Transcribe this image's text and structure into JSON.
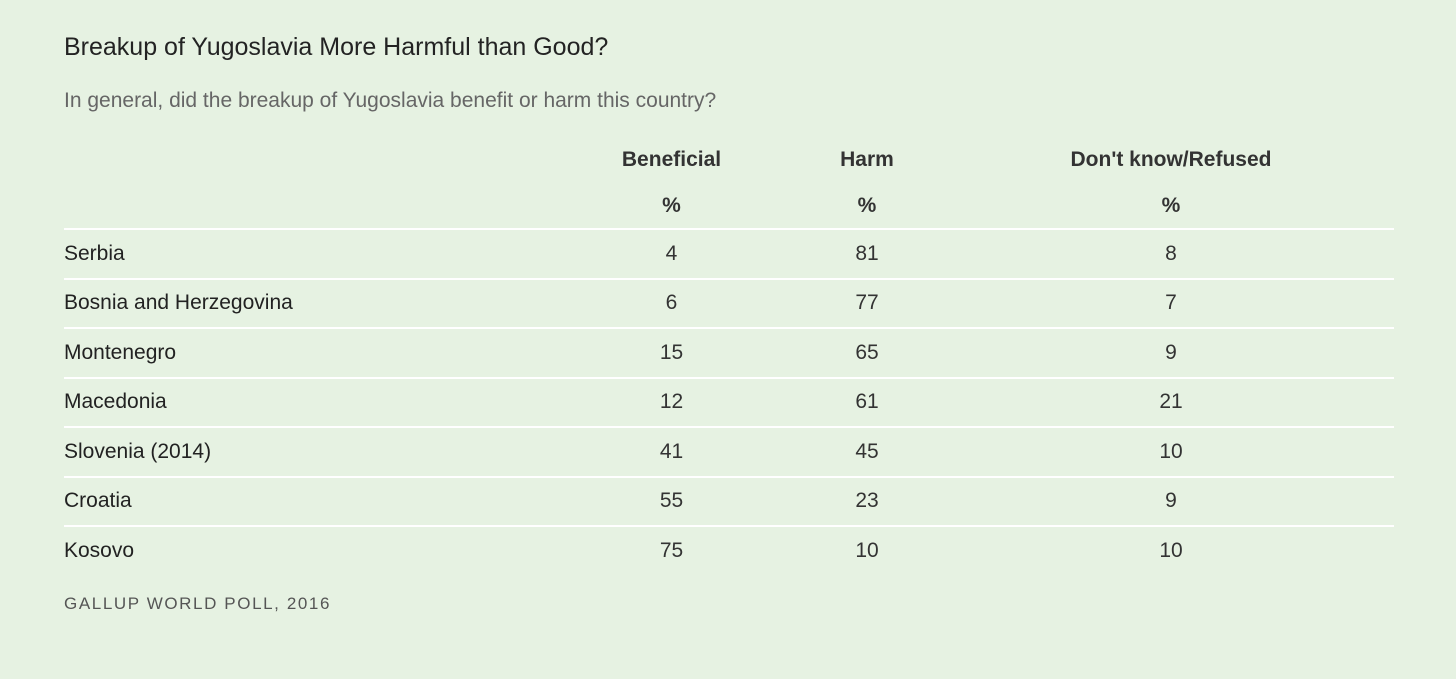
{
  "title": "Breakup of Yugoslavia More Harmful than Good?",
  "subtitle": "In general, did the breakup of Yugoslavia benefit or harm this country?",
  "source": "GALLUP WORLD POLL, 2016",
  "colors": {
    "background": "#e6f2e2",
    "row_divider": "#ffffff",
    "text": "#222222"
  },
  "chart_data": {
    "type": "table",
    "title": "Breakup of Yugoslavia More Harmful than Good?",
    "subtitle": "In general, did the breakup of Yugoslavia benefit or harm this country?",
    "columns": [
      "Beneficial",
      "Harm",
      "Don't know/Refused"
    ],
    "units": [
      "%",
      "%",
      "%"
    ],
    "rows": [
      {
        "country": "Serbia",
        "values": [
          4,
          81,
          8
        ]
      },
      {
        "country": "Bosnia and Herzegovina",
        "values": [
          6,
          77,
          7
        ]
      },
      {
        "country": "Montenegro",
        "values": [
          15,
          65,
          9
        ]
      },
      {
        "country": "Macedonia",
        "values": [
          12,
          61,
          21
        ]
      },
      {
        "country": "Slovenia (2014)",
        "values": [
          41,
          45,
          10
        ]
      },
      {
        "country": "Croatia",
        "values": [
          55,
          23,
          9
        ]
      },
      {
        "country": "Kosovo",
        "values": [
          75,
          10,
          10
        ]
      }
    ],
    "source": "GALLUP WORLD POLL, 2016"
  }
}
